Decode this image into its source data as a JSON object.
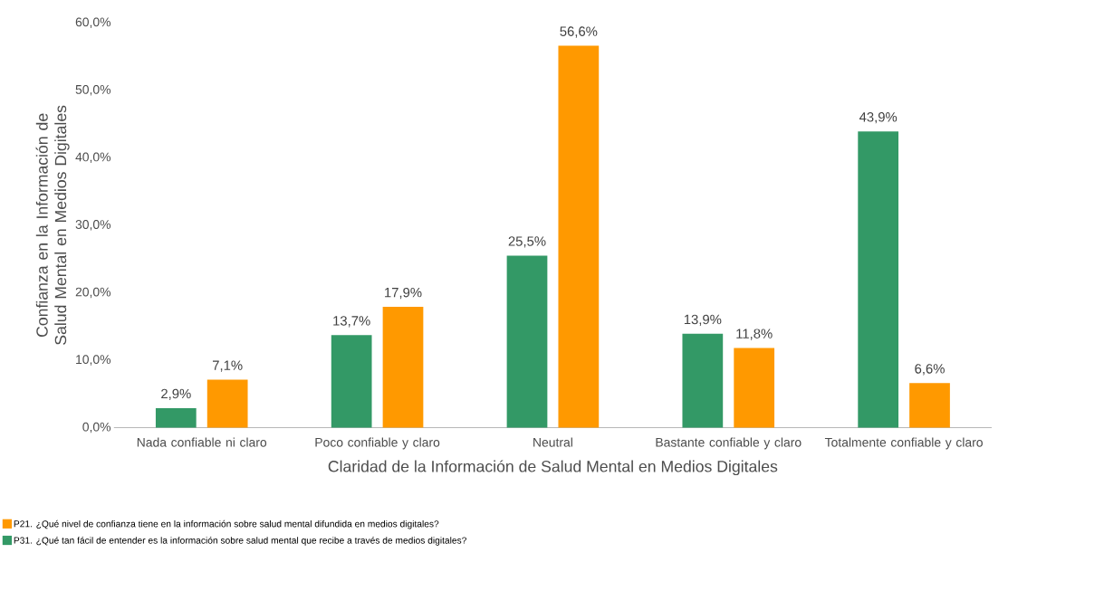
{
  "chart_data": {
    "type": "bar",
    "xlabel": "Claridad de la Información de Salud Mental en Medios Digitales",
    "ylabel": "Confianza en la Información de Salud Mental en Medios Digitales",
    "categories": [
      "Nada confiable ni claro",
      "Poco confiable y claro",
      "Neutral",
      "Bastante confiable y claro",
      "Totalmente confiable y claro"
    ],
    "series": [
      {
        "name": "P31. ¿Qué tan fácil de entender es la información sobre salud mental que recibe a través de medios digitales?",
        "color": "#339966",
        "values": [
          2.9,
          13.7,
          25.5,
          13.9,
          43.9
        ],
        "value_labels": [
          "2,9%",
          "13,7%",
          "25,5%",
          "13,9%",
          "43,9%"
        ]
      },
      {
        "name": "P21. ¿Qué nivel de confianza tiene en la información sobre salud mental difundida en medios digitales?",
        "color": "#ff9900",
        "values": [
          7.1,
          17.9,
          56.6,
          11.8,
          6.6
        ],
        "value_labels": [
          "7,1%",
          "17,9%",
          "56,6%",
          "11,8%",
          "6,6%"
        ]
      }
    ],
    "ylim": [
      0,
      60
    ],
    "yticks": [
      {
        "value": 0,
        "label": "0,0%"
      },
      {
        "value": 10,
        "label": "10,0%"
      },
      {
        "value": 20,
        "label": "20,0%"
      },
      {
        "value": 30,
        "label": "30,0%"
      },
      {
        "value": 40,
        "label": "40,0%"
      },
      {
        "value": 50,
        "label": "50,0%"
      },
      {
        "value": 60,
        "label": "60,0%"
      }
    ],
    "legend": "bottom"
  }
}
